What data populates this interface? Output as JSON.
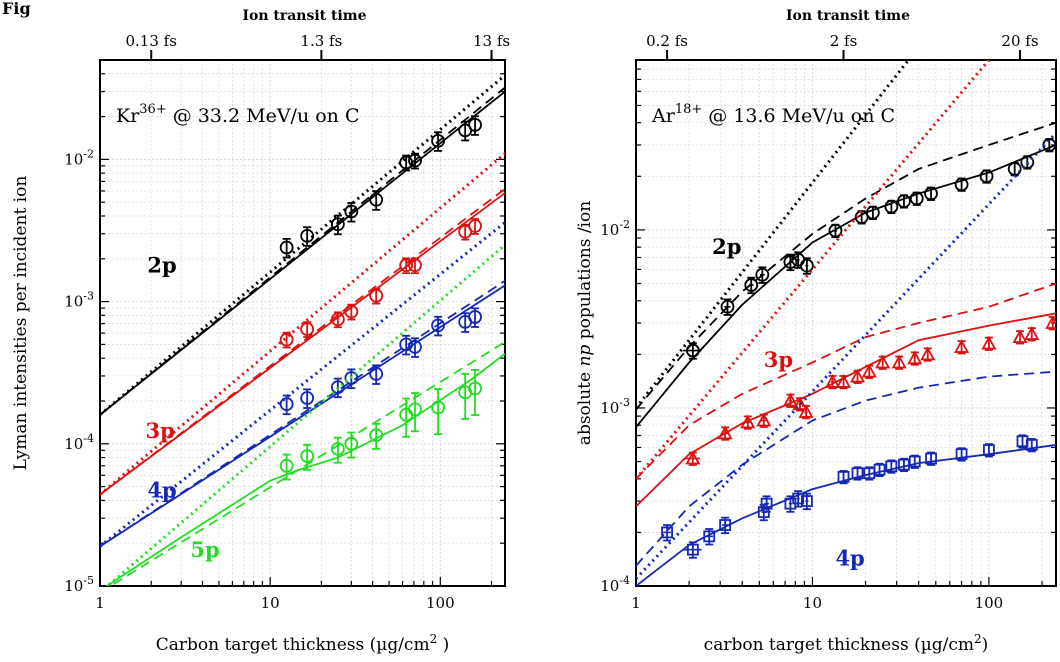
{
  "figure_label": "Fig",
  "chart_data": [
    {
      "type": "scatter",
      "xscale": "log",
      "yscale": "log",
      "xlim": [
        1,
        240
      ],
      "ylim": [
        1e-05,
        0.05
      ],
      "xticks": [
        1,
        10,
        100
      ],
      "xtick_labels": [
        "1",
        "10",
        "100"
      ],
      "yticks": [
        1e-05,
        0.0001,
        0.001,
        0.01
      ],
      "ytick_labels": [
        {
          "base": "10",
          "exp": "-5"
        },
        {
          "base": "10",
          "exp": "-4"
        },
        {
          "base": "10",
          "exp": "-3"
        },
        {
          "base": "10",
          "exp": "-2"
        }
      ],
      "grid": true,
      "xlabel": {
        "main": "Carbon target thickness (µg/cm",
        "sup": "2",
        "end": " )"
      },
      "ylabel": "Lyman intensities per incident ion",
      "top_axis": {
        "title": "Ion transit time",
        "ticks": [
          {
            "x": 2,
            "label": "0.13 fs"
          },
          {
            "x": 20,
            "label": "1.3 fs"
          },
          {
            "x": 200,
            "label": "13 fs"
          }
        ]
      },
      "annotation": {
        "pre": "Kr",
        "sup": "36+",
        "post": " @ 33.2 MeV/u on C"
      },
      "series": [
        {
          "name": "2p",
          "color": "#000000",
          "marker": "circle",
          "label_pos": [
            1.9,
            0.0016
          ],
          "x": [
            12.5,
            16.5,
            25,
            30,
            42,
            63,
            71,
            97,
            140,
            160
          ],
          "y": [
            0.0024,
            0.0029,
            0.0035,
            0.0043,
            0.0052,
            0.0095,
            0.0098,
            0.0135,
            0.016,
            0.0175
          ],
          "yerr": [
            0.15,
            0.15,
            0.15,
            0.15,
            0.15,
            0.12,
            0.12,
            0.15,
            0.15,
            0.15
          ],
          "dotted": {
            "x": [
              1,
              240
            ],
            "y": [
              0.00016,
              0.039
            ]
          },
          "dashed": {
            "x": [
              1,
              240
            ],
            "y": [
              0.00016,
              0.032
            ]
          },
          "solid": {
            "x": [
              1,
              240
            ],
            "y": [
              0.00016,
              0.03
            ]
          }
        },
        {
          "name": "3p",
          "color": "#dd1111",
          "marker": "circle",
          "label_pos": [
            1.85,
            0.00011
          ],
          "x": [
            12.5,
            16.5,
            25,
            30,
            42,
            63,
            71,
            140,
            160
          ],
          "y": [
            0.00054,
            0.00064,
            0.00075,
            0.00085,
            0.0011,
            0.0018,
            0.0018,
            0.0031,
            0.0034
          ],
          "yerr": [
            0.12,
            0.12,
            0.12,
            0.12,
            0.12,
            0.12,
            0.12,
            0.12,
            0.12
          ],
          "dotted": {
            "x": [
              1,
              240
            ],
            "y": [
              4.4e-05,
              0.011
            ]
          },
          "dashed": {
            "x": [
              1,
              240
            ],
            "y": [
              4.4e-05,
              0.0062
            ]
          },
          "solid": {
            "x": [
              1,
              240
            ],
            "y": [
              4.4e-05,
              0.0058
            ]
          }
        },
        {
          "name": "4p",
          "color": "#1428b4",
          "marker": "circle",
          "label_pos": [
            1.9,
            4.2e-05
          ],
          "x": [
            12.5,
            16.5,
            25,
            30,
            42,
            63,
            71,
            97,
            140,
            160
          ],
          "y": [
            0.00019,
            0.00021,
            0.00025,
            0.00029,
            0.00031,
            0.0005,
            0.00048,
            0.00068,
            0.00072,
            0.00078
          ],
          "yerr": [
            0.15,
            0.15,
            0.15,
            0.15,
            0.15,
            0.15,
            0.15,
            0.15,
            0.15,
            0.15
          ],
          "dotted": {
            "x": [
              1,
              240
            ],
            "y": [
              1.9e-05,
              0.0036
            ]
          },
          "dashed": {
            "x": [
              1,
              240
            ],
            "y": [
              1.9e-05,
              0.0014
            ]
          },
          "solid": {
            "x": [
              1,
              240
            ],
            "y": [
              1.9e-05,
              0.0013
            ]
          }
        },
        {
          "name": "5p",
          "color": "#22dd22",
          "marker": "circle",
          "label_pos": [
            3.4,
            1.6e-05
          ],
          "x": [
            12.5,
            16.5,
            25,
            30,
            42,
            63,
            71,
            97,
            140,
            160
          ],
          "y": [
            7e-05,
            8.2e-05,
            9.2e-05,
            0.0001,
            0.000115,
            0.00016,
            0.000175,
            0.00018,
            0.00023,
            0.000245
          ],
          "yerr": [
            0.2,
            0.2,
            0.2,
            0.2,
            0.2,
            0.3,
            0.3,
            0.35,
            0.35,
            0.35
          ],
          "dotted": {
            "x": [
              1,
              240
            ],
            "y": [
              9e-06,
              0.0025
            ]
          },
          "dashed": {
            "x": [
              1,
              240
            ],
            "y": [
              9e-06,
              0.00052
            ]
          },
          "solid": {
            "x": [
              1,
              3,
              10,
              15,
              25,
              60,
              150,
              240
            ],
            "y": [
              9.3e-06,
              2.2e-05,
              5.5e-05,
              6.6e-05,
              8e-05,
              0.000135,
              0.00028,
              0.00043
            ]
          }
        }
      ]
    },
    {
      "type": "scatter",
      "xscale": "log",
      "yscale": "log",
      "xlim": [
        1,
        240
      ],
      "ylim": [
        0.0001,
        0.09
      ],
      "xticks": [
        1,
        10,
        100
      ],
      "xtick_labels": [
        "1",
        "10",
        "100"
      ],
      "yticks": [
        0.0001,
        0.001,
        0.01
      ],
      "ytick_labels": [
        {
          "base": "10",
          "exp": "-4"
        },
        {
          "base": "10",
          "exp": "-3"
        },
        {
          "base": "10",
          "exp": "-2"
        }
      ],
      "grid": true,
      "xlabel": {
        "main": "carbon target thickness (µg/cm",
        "sup": "2",
        "end": ")"
      },
      "ylabel": {
        "pre": "absolute ",
        "ital": "np",
        "post": " populations /ion"
      },
      "top_axis": {
        "title": "Ion transit time",
        "ticks": [
          {
            "x": 1.5,
            "label": "0.2 fs"
          },
          {
            "x": 15,
            "label": "2 fs"
          },
          {
            "x": 150,
            "label": "20 fs"
          }
        ]
      },
      "annotation": {
        "pre": "Ar",
        "sup": "18+",
        "post": " @ 13.6 MeV/u on C"
      },
      "series": [
        {
          "name": "2p",
          "color": "#000000",
          "marker": "circle",
          "label_pos": [
            2.7,
            0.0073
          ],
          "x": [
            2.1,
            3.3,
            4.5,
            5.2,
            7.5,
            8.3,
            9.3,
            13.5,
            19,
            22,
            28,
            33,
            39,
            47,
            70,
            97,
            140,
            165,
            220
          ],
          "y": [
            0.0021,
            0.0037,
            0.0049,
            0.0056,
            0.0066,
            0.0068,
            0.0063,
            0.0099,
            0.0118,
            0.0125,
            0.0135,
            0.0145,
            0.015,
            0.016,
            0.018,
            0.02,
            0.022,
            0.024,
            0.03
          ],
          "yerr": [
            0.1,
            0.1,
            0.1,
            0.1,
            0.1,
            0.1,
            0.1,
            0.08,
            0.08,
            0.08,
            0.08,
            0.08,
            0.08,
            0.08,
            0.08,
            0.08,
            0.08,
            0.08,
            0.08
          ],
          "xerr": [
            0.12,
            0.04,
            0.03,
            0.03,
            0.02,
            0.02,
            0.02,
            0.02,
            0,
            0,
            0,
            0,
            0,
            0,
            0,
            0,
            0,
            0,
            0
          ],
          "dotted": {
            "x": [
              1,
              35
            ],
            "y": [
              0.001,
              0.09
            ]
          },
          "dashed": {
            "x": [
              1,
              2,
              4,
              10,
              20,
              40,
              100,
              240
            ],
            "y": [
              0.00098,
              0.0022,
              0.0045,
              0.0095,
              0.015,
              0.022,
              0.03,
              0.04
            ]
          },
          "solid": {
            "x": [
              1,
              2,
              4,
              10,
              20,
              40,
              100,
              240
            ],
            "y": [
              0.00078,
              0.0018,
              0.0038,
              0.0085,
              0.0125,
              0.016,
              0.021,
              0.03
            ]
          }
        },
        {
          "name": "3p",
          "color": "#dd1111",
          "marker": "triangle",
          "label_pos": [
            5.3,
            0.0017
          ],
          "x": [
            2.1,
            3.2,
            4.3,
            5.3,
            7.5,
            8.5,
            9.2,
            13,
            15,
            18,
            21,
            25,
            31,
            38,
            45,
            70,
            100,
            150,
            175,
            230
          ],
          "y": [
            0.00052,
            0.00072,
            0.00083,
            0.00085,
            0.0011,
            0.00105,
            0.00095,
            0.0014,
            0.0014,
            0.0015,
            0.0016,
            0.0018,
            0.0018,
            0.0019,
            0.002,
            0.0022,
            0.0023,
            0.0025,
            0.0026,
            0.003
          ],
          "yerr": [
            0.08,
            0.08,
            0.08,
            0.08,
            0.08,
            0.08,
            0.08,
            0.08,
            0.08,
            0.08,
            0.08,
            0.08,
            0.08,
            0.08,
            0.08,
            0.08,
            0.08,
            0.08,
            0.08,
            0.08
          ],
          "xerr": [
            0.1,
            0.04,
            0.03,
            0.03,
            0.02,
            0.02,
            0.02,
            0.02,
            0,
            0,
            0,
            0,
            0,
            0,
            0,
            0,
            0,
            0,
            0,
            0
          ],
          "dotted": {
            "x": [
              1,
              100
            ],
            "y": [
              0.0004,
              0.09
            ]
          },
          "dashed": {
            "x": [
              1,
              2,
              4,
              10,
              20,
              40,
              100,
              240
            ],
            "y": [
              0.0004,
              0.0008,
              0.0012,
              0.0018,
              0.0025,
              0.003,
              0.0037,
              0.005
            ]
          },
          "solid": {
            "x": [
              1,
              2,
              4,
              10,
              20,
              40,
              100,
              240
            ],
            "y": [
              0.00028,
              0.00055,
              0.00082,
              0.0012,
              0.0017,
              0.0024,
              0.0029,
              0.0034
            ]
          }
        },
        {
          "name": "4p",
          "color": "#1428b4",
          "marker": "square",
          "label_pos": [
            13.5,
            0.00013
          ],
          "x": [
            1.5,
            2.1,
            2.6,
            3.2,
            5.3,
            5.5,
            7.5,
            8.3,
            9.3,
            15,
            18,
            21,
            24,
            28,
            33,
            38,
            47,
            70,
            100,
            155,
            175
          ],
          "y": [
            0.0002,
            0.00016,
            0.00019,
            0.00022,
            0.00026,
            0.00029,
            0.00029,
            0.00031,
            0.0003,
            0.00041,
            0.00043,
            0.00043,
            0.00045,
            0.00047,
            0.00048,
            0.0005,
            0.00052,
            0.00055,
            0.00058,
            0.00065,
            0.00062
          ],
          "yerr": [
            0.1,
            0.1,
            0.1,
            0.1,
            0.1,
            0.1,
            0.1,
            0.1,
            0.1,
            0.08,
            0.08,
            0.08,
            0.08,
            0.08,
            0.08,
            0.08,
            0.08,
            0.08,
            0.08,
            0.08,
            0.08
          ],
          "xerr": [
            0.05,
            0.12,
            0.05,
            0.04,
            0.03,
            0.03,
            0.02,
            0.02,
            0.02,
            0,
            0,
            0,
            0,
            0,
            0,
            0,
            0,
            0,
            0,
            0,
            0
          ],
          "dotted": {
            "x": [
              1,
              240
            ],
            "y": [
              0.00011,
              0.035
            ]
          },
          "dashed": {
            "x": [
              1,
              2,
              4,
              10,
              20,
              40,
              100,
              240
            ],
            "y": [
              0.00013,
              0.00028,
              0.00048,
              0.00085,
              0.0011,
              0.0013,
              0.0015,
              0.0016
            ]
          },
          "solid": {
            "x": [
              1,
              2,
              4,
              10,
              20,
              40,
              100,
              240
            ],
            "y": [
              0.0001,
              0.00017,
              0.00024,
              0.00035,
              0.00042,
              0.00049,
              0.00055,
              0.00062
            ]
          }
        }
      ]
    }
  ]
}
